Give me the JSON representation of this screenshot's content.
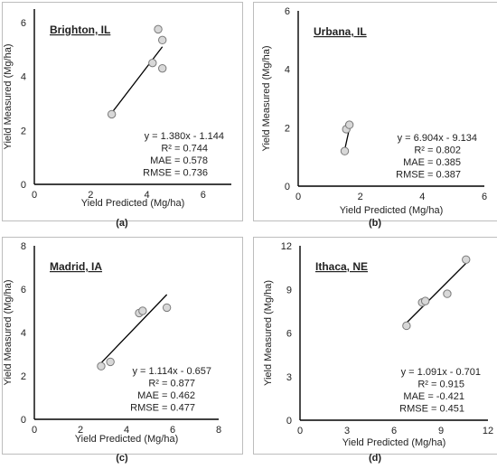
{
  "chart_data": [
    {
      "type": "scatter",
      "panel_label": "(a)",
      "location": "Brighton, IL",
      "xlabel": "Yield Predicted (Mg/ha)",
      "ylabel": "Yield Measured (Mg/ha)",
      "xlim": [
        0,
        7
      ],
      "ylim": [
        0,
        6.5
      ],
      "x_ticks": [
        "0",
        "2",
        "4",
        "6"
      ],
      "y_ticks": [
        "0",
        "2",
        "4",
        "6"
      ],
      "grid": false,
      "points": [
        {
          "x": 2.75,
          "y": 2.6
        },
        {
          "x": 4.2,
          "y": 4.5
        },
        {
          "x": 4.4,
          "y": 5.75
        },
        {
          "x": 4.55,
          "y": 5.35
        },
        {
          "x": 4.55,
          "y": 4.3
        }
      ],
      "trendline": {
        "x": [
          2.75,
          4.55
        ],
        "y": [
          2.65,
          5.1
        ]
      },
      "stats": [
        "y = 1.380x - 1.144",
        "R² = 0.744",
        "MAE = 0.578",
        "RMSE = 0.736"
      ]
    },
    {
      "type": "scatter",
      "panel_label": "(b)",
      "location": "Urbana, IL",
      "xlabel": "Yield Predicted (Mg/ha)",
      "ylabel": "Yield Measured (Mg/ha)",
      "xlim": [
        0,
        6
      ],
      "ylim": [
        0,
        6
      ],
      "x_ticks": [
        "0",
        "2",
        "4",
        "6"
      ],
      "y_ticks": [
        "0",
        "2",
        "4",
        "6"
      ],
      "grid": false,
      "points": [
        {
          "x": 1.5,
          "y": 1.2
        },
        {
          "x": 1.55,
          "y": 1.95
        },
        {
          "x": 1.65,
          "y": 2.1
        }
      ],
      "trendline": {
        "x": [
          1.5,
          1.68
        ],
        "y": [
          1.25,
          2.12
        ]
      },
      "stats": [
        "y = 6.904x - 9.134",
        "R² = 0.802",
        "MAE = 0.385",
        "RMSE = 0.387"
      ]
    },
    {
      "type": "scatter",
      "panel_label": "(c)",
      "location": "Madrid, IA",
      "xlabel": "Yield Predicted (Mg/ha)",
      "ylabel": "Yield Measured (Mg/ha)",
      "xlim": [
        0,
        8
      ],
      "ylim": [
        0,
        8
      ],
      "x_ticks": [
        "0",
        "2",
        "4",
        "6",
        "8"
      ],
      "y_ticks": [
        "0",
        "2",
        "4",
        "6",
        "8"
      ],
      "grid": false,
      "points": [
        {
          "x": 2.9,
          "y": 2.45
        },
        {
          "x": 3.3,
          "y": 2.65
        },
        {
          "x": 4.55,
          "y": 4.9
        },
        {
          "x": 4.7,
          "y": 5.0
        },
        {
          "x": 5.75,
          "y": 5.15
        }
      ],
      "trendline": {
        "x": [
          2.9,
          5.75
        ],
        "y": [
          2.6,
          5.75
        ]
      },
      "stats": [
        "y = 1.114x - 0.657",
        "R² = 0.877",
        "MAE = 0.462",
        "RMSE = 0.477"
      ]
    },
    {
      "type": "scatter",
      "panel_label": "(d)",
      "location": "Ithaca, NE",
      "xlabel": "Yield Predicted (Mg/ha)",
      "ylabel": "Yield Measured (Mg/ha)",
      "xlim": [
        0,
        12
      ],
      "ylim": [
        0,
        12
      ],
      "x_ticks": [
        "0",
        "3",
        "6",
        "9",
        "12"
      ],
      "y_ticks": [
        "0",
        "3",
        "6",
        "9",
        "12"
      ],
      "grid": false,
      "points": [
        {
          "x": 6.8,
          "y": 6.5
        },
        {
          "x": 7.8,
          "y": 8.1
        },
        {
          "x": 8.0,
          "y": 8.2
        },
        {
          "x": 9.4,
          "y": 8.7
        },
        {
          "x": 10.6,
          "y": 11.05
        }
      ],
      "trendline": {
        "x": [
          6.8,
          10.6
        ],
        "y": [
          6.7,
          10.8
        ]
      },
      "stats": [
        "y = 1.091x - 0.701",
        "R² = 0.915",
        "MAE = -0.421",
        "RMSE = 0.451"
      ]
    }
  ],
  "colors": {
    "marker_fill": "#d8d8d8",
    "marker_stroke": "#7a7a7a",
    "trendline": "#000000",
    "axis": "#000000",
    "frame": "#bdbdbd",
    "text": "#222222"
  }
}
